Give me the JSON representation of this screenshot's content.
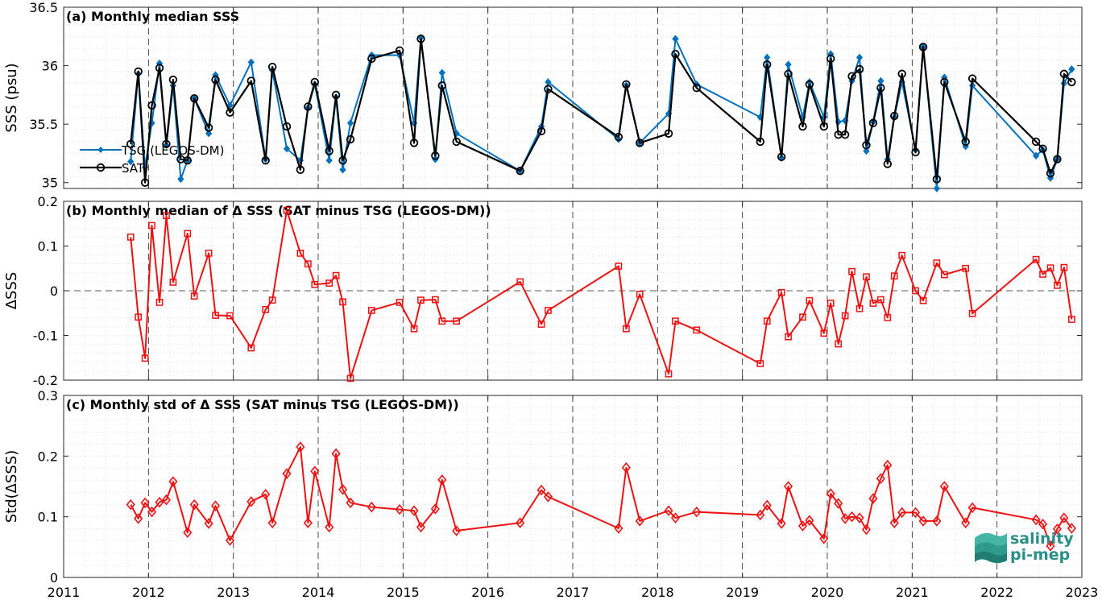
{
  "logo": {
    "line1": "salinity",
    "line2": "pi-mep",
    "color": "#2a8f88"
  },
  "colors": {
    "tsg": "#0072bd",
    "sat": "#000000",
    "delta": "#ee1111"
  },
  "x_axis": {
    "ticks": [
      "2011",
      "2012",
      "2013",
      "2014",
      "2015",
      "2016",
      "2017",
      "2018",
      "2019",
      "2020",
      "2021",
      "2022",
      "2023"
    ],
    "xlim": [
      2011,
      2023
    ]
  },
  "chart_data": [
    {
      "type": "line",
      "title": "(a) Monthly median SSS",
      "ylabel": "SSS (psu)",
      "ylim": [
        34.95,
        36.5
      ],
      "yticks": [
        "35",
        "35.5",
        "36",
        "36.5"
      ],
      "ytick_values": [
        35,
        35.5,
        36,
        36.5
      ],
      "grid": true,
      "legend": {
        "placement": "left-middle",
        "entries": [
          "TSG (LEGOS-DM)",
          "SAT"
        ]
      },
      "series": [
        {
          "name": "TSG (LEGOS-DM)",
          "marker": "diamond-filled",
          "x": [
            2011.79,
            2011.88,
            2011.96,
            2012.04,
            2012.13,
            2012.21,
            2012.29,
            2012.38,
            2012.46,
            2012.54,
            2012.71,
            2012.79,
            2012.96,
            2013.21,
            2013.38,
            2013.46,
            2013.63,
            2013.79,
            2013.88,
            2013.96,
            2014.13,
            2014.21,
            2014.29,
            2014.38,
            2014.63,
            2014.96,
            2015.13,
            2015.21,
            2015.38,
            2015.46,
            2015.63,
            2016.38,
            2016.63,
            2016.71,
            2017.54,
            2017.63,
            2017.79,
            2018.13,
            2018.21,
            2018.46,
            2019.21,
            2019.29,
            2019.46,
            2019.54,
            2019.71,
            2019.79,
            2019.96,
            2020.04,
            2020.13,
            2020.21,
            2020.29,
            2020.38,
            2020.46,
            2020.54,
            2020.63,
            2020.71,
            2020.79,
            2020.88,
            2021.04,
            2021.13,
            2021.29,
            2021.38,
            2021.63,
            2021.71,
            2022.46,
            2022.54,
            2022.63,
            2022.71,
            2022.79,
            2022.88
          ],
          "y": [
            35.18,
            35.93,
            35.13,
            35.51,
            36.02,
            35.32,
            35.83,
            35.03,
            35.19,
            35.72,
            35.42,
            35.92,
            35.66,
            36.03,
            35.2,
            35.96,
            35.29,
            35.19,
            35.64,
            35.84,
            35.19,
            35.73,
            35.11,
            35.51,
            36.09,
            36.09,
            35.51,
            36.24,
            35.2,
            35.94,
            35.42,
            35.1,
            35.48,
            35.86,
            35.37,
            35.83,
            35.34,
            35.59,
            36.23,
            35.84,
            35.56,
            36.07,
            35.21,
            36.01,
            35.56,
            35.86,
            35.56,
            36.1,
            35.52,
            35.53,
            35.87,
            36.07,
            35.27,
            35.52,
            35.87,
            35.2,
            35.56,
            35.86,
            35.28,
            36.16,
            34.95,
            35.9,
            35.31,
            35.83,
            35.23,
            35.28,
            35.04,
            35.2,
            35.85,
            35.97
          ]
        },
        {
          "name": "SAT",
          "marker": "circle-open",
          "x": [
            2011.79,
            2011.88,
            2011.96,
            2012.04,
            2012.13,
            2012.21,
            2012.29,
            2012.38,
            2012.46,
            2012.54,
            2012.71,
            2012.79,
            2012.96,
            2013.21,
            2013.38,
            2013.46,
            2013.63,
            2013.79,
            2013.88,
            2013.96,
            2014.13,
            2014.21,
            2014.29,
            2014.38,
            2014.63,
            2014.96,
            2015.13,
            2015.21,
            2015.38,
            2015.46,
            2015.63,
            2016.38,
            2016.63,
            2016.71,
            2017.54,
            2017.63,
            2017.79,
            2018.13,
            2018.21,
            2018.46,
            2019.21,
            2019.29,
            2019.46,
            2019.54,
            2019.71,
            2019.79,
            2019.96,
            2020.04,
            2020.13,
            2020.21,
            2020.29,
            2020.38,
            2020.46,
            2020.54,
            2020.63,
            2020.71,
            2020.79,
            2020.88,
            2021.04,
            2021.13,
            2021.29,
            2021.38,
            2021.63,
            2021.71,
            2022.46,
            2022.54,
            2022.63,
            2022.71,
            2022.79,
            2022.88
          ],
          "y": [
            35.33,
            35.95,
            35.0,
            35.66,
            35.98,
            35.33,
            35.88,
            35.2,
            35.19,
            35.72,
            35.47,
            35.88,
            35.6,
            35.87,
            35.19,
            35.99,
            35.48,
            35.11,
            35.65,
            35.86,
            35.27,
            35.75,
            35.19,
            35.37,
            36.06,
            36.13,
            35.34,
            36.23,
            35.23,
            35.83,
            35.35,
            35.1,
            35.44,
            35.8,
            35.39,
            35.84,
            35.34,
            35.42,
            36.1,
            35.81,
            35.35,
            36.01,
            35.22,
            35.93,
            35.48,
            35.84,
            35.48,
            36.06,
            35.41,
            35.41,
            35.91,
            35.97,
            35.32,
            35.51,
            35.81,
            35.16,
            35.57,
            35.93,
            35.26,
            36.16,
            35.03,
            35.86,
            35.35,
            35.89,
            35.35,
            35.29,
            35.08,
            35.2,
            35.93,
            35.86
          ]
        }
      ]
    },
    {
      "type": "line",
      "title": "(b) Monthly median of Δ SSS (SAT minus TSG (LEGOS-DM))",
      "ylabel": "ΔSSS",
      "ylim": [
        -0.2,
        0.2
      ],
      "yticks": [
        "-0.2",
        "-0.1",
        "0",
        "0.1",
        "0.2"
      ],
      "ytick_values": [
        -0.2,
        -0.1,
        0,
        0.1,
        0.2
      ],
      "grid": true,
      "zero_line": "dashed",
      "series": [
        {
          "name": "",
          "marker": "square-open",
          "x": [
            2011.79,
            2011.88,
            2011.96,
            2012.04,
            2012.13,
            2012.21,
            2012.29,
            2012.46,
            2012.54,
            2012.71,
            2012.79,
            2012.96,
            2013.21,
            2013.38,
            2013.46,
            2013.63,
            2013.79,
            2013.88,
            2013.96,
            2014.13,
            2014.21,
            2014.29,
            2014.38,
            2014.63,
            2014.96,
            2015.13,
            2015.21,
            2015.38,
            2015.46,
            2015.63,
            2016.38,
            2016.63,
            2016.71,
            2017.54,
            2017.63,
            2017.79,
            2018.13,
            2018.21,
            2018.46,
            2019.21,
            2019.29,
            2019.46,
            2019.54,
            2019.71,
            2019.79,
            2019.96,
            2020.04,
            2020.13,
            2020.21,
            2020.29,
            2020.38,
            2020.46,
            2020.54,
            2020.63,
            2020.71,
            2020.79,
            2020.88,
            2021.04,
            2021.13,
            2021.29,
            2021.38,
            2021.63,
            2021.71,
            2022.46,
            2022.54,
            2022.63,
            2022.71,
            2022.79,
            2022.88
          ],
          "y": [
            0.12,
            -0.059,
            -0.151,
            0.146,
            -0.026,
            0.168,
            0.019,
            0.128,
            -0.012,
            0.084,
            -0.055,
            -0.056,
            -0.128,
            -0.042,
            -0.021,
            0.18,
            0.084,
            0.06,
            0.014,
            0.017,
            0.034,
            -0.025,
            -0.196,
            -0.044,
            -0.026,
            -0.085,
            -0.021,
            -0.02,
            -0.068,
            -0.068,
            0.02,
            -0.075,
            -0.044,
            0.055,
            -0.085,
            -0.008,
            -0.186,
            -0.068,
            -0.088,
            -0.163,
            -0.068,
            -0.004,
            -0.103,
            -0.059,
            -0.022,
            -0.095,
            -0.028,
            -0.119,
            -0.056,
            0.043,
            -0.04,
            0.031,
            -0.028,
            -0.02,
            -0.06,
            0.033,
            0.079,
            0.0,
            -0.022,
            0.062,
            0.036,
            0.05,
            -0.051,
            0.07,
            0.037,
            0.051,
            0.012,
            0.052,
            -0.064
          ]
        }
      ]
    },
    {
      "type": "line",
      "title": "(c) Monthly std of Δ SSS (SAT minus TSG (LEGOS-DM))",
      "ylabel": "Std(ΔSSS)",
      "ylim": [
        0,
        0.3
      ],
      "yticks": [
        "0",
        "0.1",
        "0.2",
        "0.3"
      ],
      "ytick_values": [
        0,
        0.1,
        0.2,
        0.3
      ],
      "grid": true,
      "series": [
        {
          "name": "",
          "marker": "diamond-open",
          "x": [
            2011.79,
            2011.88,
            2011.96,
            2012.04,
            2012.13,
            2012.21,
            2012.29,
            2012.46,
            2012.54,
            2012.71,
            2012.79,
            2012.96,
            2013.21,
            2013.38,
            2013.46,
            2013.63,
            2013.79,
            2013.88,
            2013.96,
            2014.13,
            2014.21,
            2014.29,
            2014.38,
            2014.63,
            2014.96,
            2015.13,
            2015.21,
            2015.38,
            2015.46,
            2015.63,
            2016.38,
            2016.63,
            2016.71,
            2017.54,
            2017.63,
            2017.79,
            2018.13,
            2018.21,
            2018.46,
            2019.21,
            2019.29,
            2019.46,
            2019.54,
            2019.71,
            2019.79,
            2019.96,
            2020.04,
            2020.13,
            2020.21,
            2020.29,
            2020.38,
            2020.46,
            2020.54,
            2020.63,
            2020.71,
            2020.79,
            2020.88,
            2021.04,
            2021.13,
            2021.29,
            2021.38,
            2021.63,
            2021.71,
            2022.46,
            2022.54,
            2022.63,
            2022.71,
            2022.79,
            2022.88
          ],
          "y": [
            0.12,
            0.097,
            0.123,
            0.108,
            0.124,
            0.128,
            0.158,
            0.074,
            0.12,
            0.089,
            0.118,
            0.061,
            0.125,
            0.137,
            0.09,
            0.171,
            0.215,
            0.09,
            0.175,
            0.083,
            0.204,
            0.145,
            0.123,
            0.116,
            0.112,
            0.11,
            0.083,
            0.113,
            0.161,
            0.077,
            0.09,
            0.144,
            0.133,
            0.081,
            0.181,
            0.093,
            0.11,
            0.098,
            0.108,
            0.103,
            0.119,
            0.089,
            0.15,
            0.085,
            0.094,
            0.064,
            0.138,
            0.122,
            0.097,
            0.1,
            0.098,
            0.079,
            0.13,
            0.163,
            0.185,
            0.09,
            0.107,
            0.107,
            0.093,
            0.093,
            0.15,
            0.09,
            0.115,
            0.095,
            0.088,
            0.052,
            0.08,
            0.098,
            0.081
          ]
        }
      ]
    }
  ]
}
